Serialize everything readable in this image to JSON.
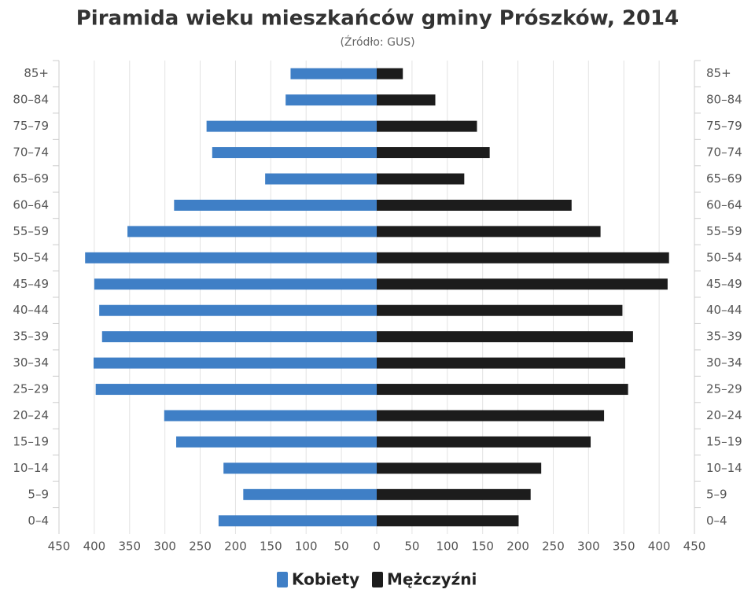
{
  "chart_data": {
    "type": "pyramid",
    "title": "Piramida wieku mieszkańców gminy Prószków, 2014",
    "subtitle": "(Źródło: GUS)",
    "categories": [
      "85+",
      "80–84",
      "75–79",
      "70–74",
      "65–69",
      "60–64",
      "55–59",
      "50–54",
      "45–49",
      "40–44",
      "35–39",
      "30–34",
      "25–29",
      "20–24",
      "15–19",
      "10–14",
      "5–9",
      "0–4"
    ],
    "series": [
      {
        "name": "Kobiety",
        "color": "#3f7fc6",
        "values": [
          -122,
          -129,
          -241,
          -233,
          -158,
          -287,
          -353,
          -413,
          -400,
          -393,
          -389,
          -401,
          -398,
          -301,
          -284,
          -217,
          -189,
          -224
        ]
      },
      {
        "name": "Mężczyźni",
        "color": "#1c1c1c",
        "values": [
          37,
          83,
          142,
          160,
          124,
          276,
          317,
          414,
          412,
          348,
          363,
          352,
          356,
          322,
          303,
          233,
          218,
          201
        ]
      }
    ],
    "xlim": [
      -450,
      450
    ],
    "xticks": [
      {
        "value": -450,
        "label": "450"
      },
      {
        "value": -400,
        "label": "400"
      },
      {
        "value": -350,
        "label": "350"
      },
      {
        "value": -300,
        "label": "300"
      },
      {
        "value": -250,
        "label": "250"
      },
      {
        "value": -200,
        "label": "200"
      },
      {
        "value": -150,
        "label": "150"
      },
      {
        "value": -100,
        "label": "100"
      },
      {
        "value": -50,
        "label": "50"
      },
      0,
      50,
      100,
      150,
      200,
      250,
      300,
      350,
      400,
      450
    ],
    "grid": true
  }
}
